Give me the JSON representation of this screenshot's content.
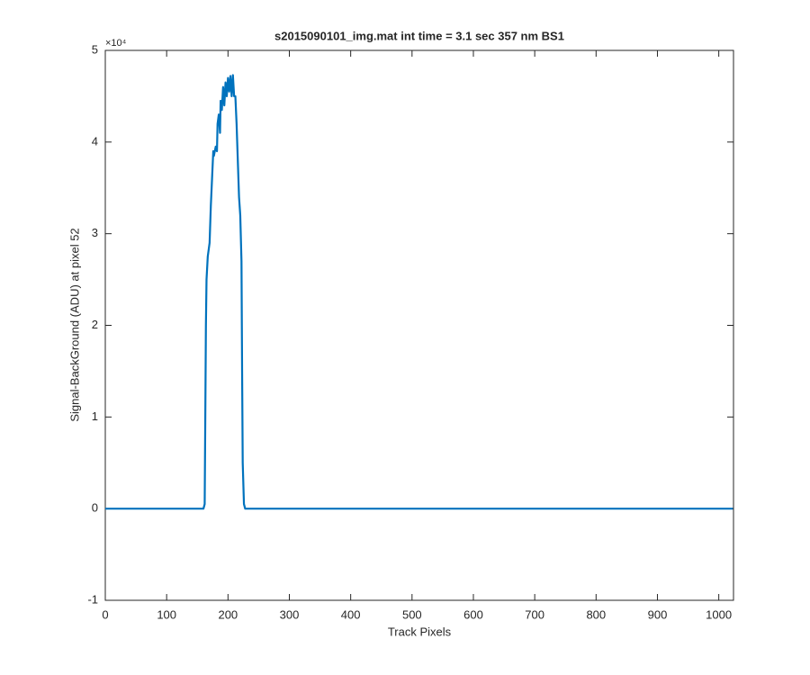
{
  "chart_data": {
    "type": "line",
    "title": "s2015090101_img.mat int time = 3.1 sec  357 nm BS1",
    "x_label": "Track Pixels",
    "y_label": "Signal-BackGround (ADU) at pixel 52",
    "y_exponent": "×10⁴",
    "xlim": [
      0,
      1024
    ],
    "ylim": [
      -1,
      5
    ],
    "xticks": [
      0,
      100,
      200,
      300,
      400,
      500,
      600,
      700,
      800,
      900,
      1000
    ],
    "yticks": [
      -1,
      0,
      1,
      2,
      3,
      4,
      5
    ],
    "series": [
      {
        "name": "pixel 52",
        "color": "#0072bd",
        "x": [
          0,
          50,
          100,
          150,
          160,
          162,
          163,
          164,
          165,
          167,
          170,
          172,
          174,
          176,
          177,
          180,
          182,
          183,
          185,
          187,
          188,
          190,
          192,
          194,
          196,
          198,
          200,
          202,
          204,
          206,
          208,
          210,
          212,
          214,
          216,
          218,
          220,
          222,
          223,
          224,
          226,
          228,
          300,
          400,
          500,
          600,
          700,
          800,
          900,
          1000,
          1023
        ],
        "values": [
          0,
          0,
          0,
          0,
          0,
          0.05,
          1.0,
          2.0,
          2.5,
          2.75,
          2.9,
          3.3,
          3.6,
          3.9,
          3.85,
          3.95,
          3.9,
          4.2,
          4.3,
          4.1,
          4.45,
          4.35,
          4.6,
          4.4,
          4.65,
          4.5,
          4.7,
          4.55,
          4.72,
          4.5,
          4.73,
          4.5,
          4.5,
          4.2,
          3.8,
          3.4,
          3.2,
          2.7,
          1.5,
          0.5,
          0.05,
          0,
          0,
          0,
          0,
          0,
          0,
          0,
          0,
          0,
          0
        ]
      }
    ]
  }
}
